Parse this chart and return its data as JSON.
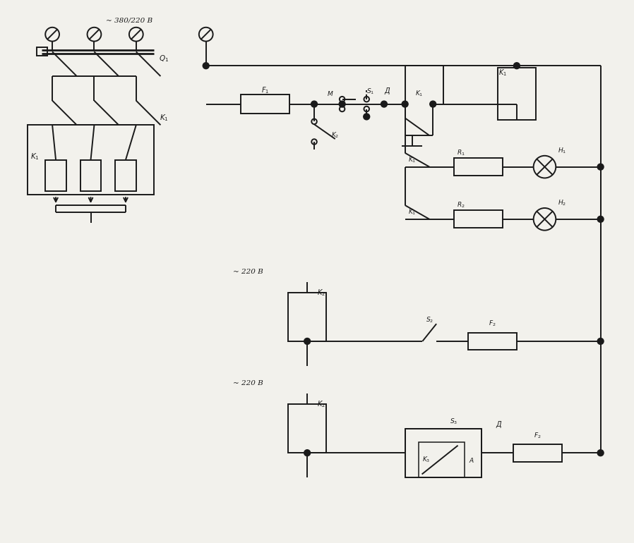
{
  "bg_color": "#f2f1ec",
  "lc": "#1a1a1a",
  "lw": 1.4,
  "voltage_380": "~ 380/220 В",
  "voltage_220a": "~ 220 В",
  "voltage_220b": "~ 220 В"
}
